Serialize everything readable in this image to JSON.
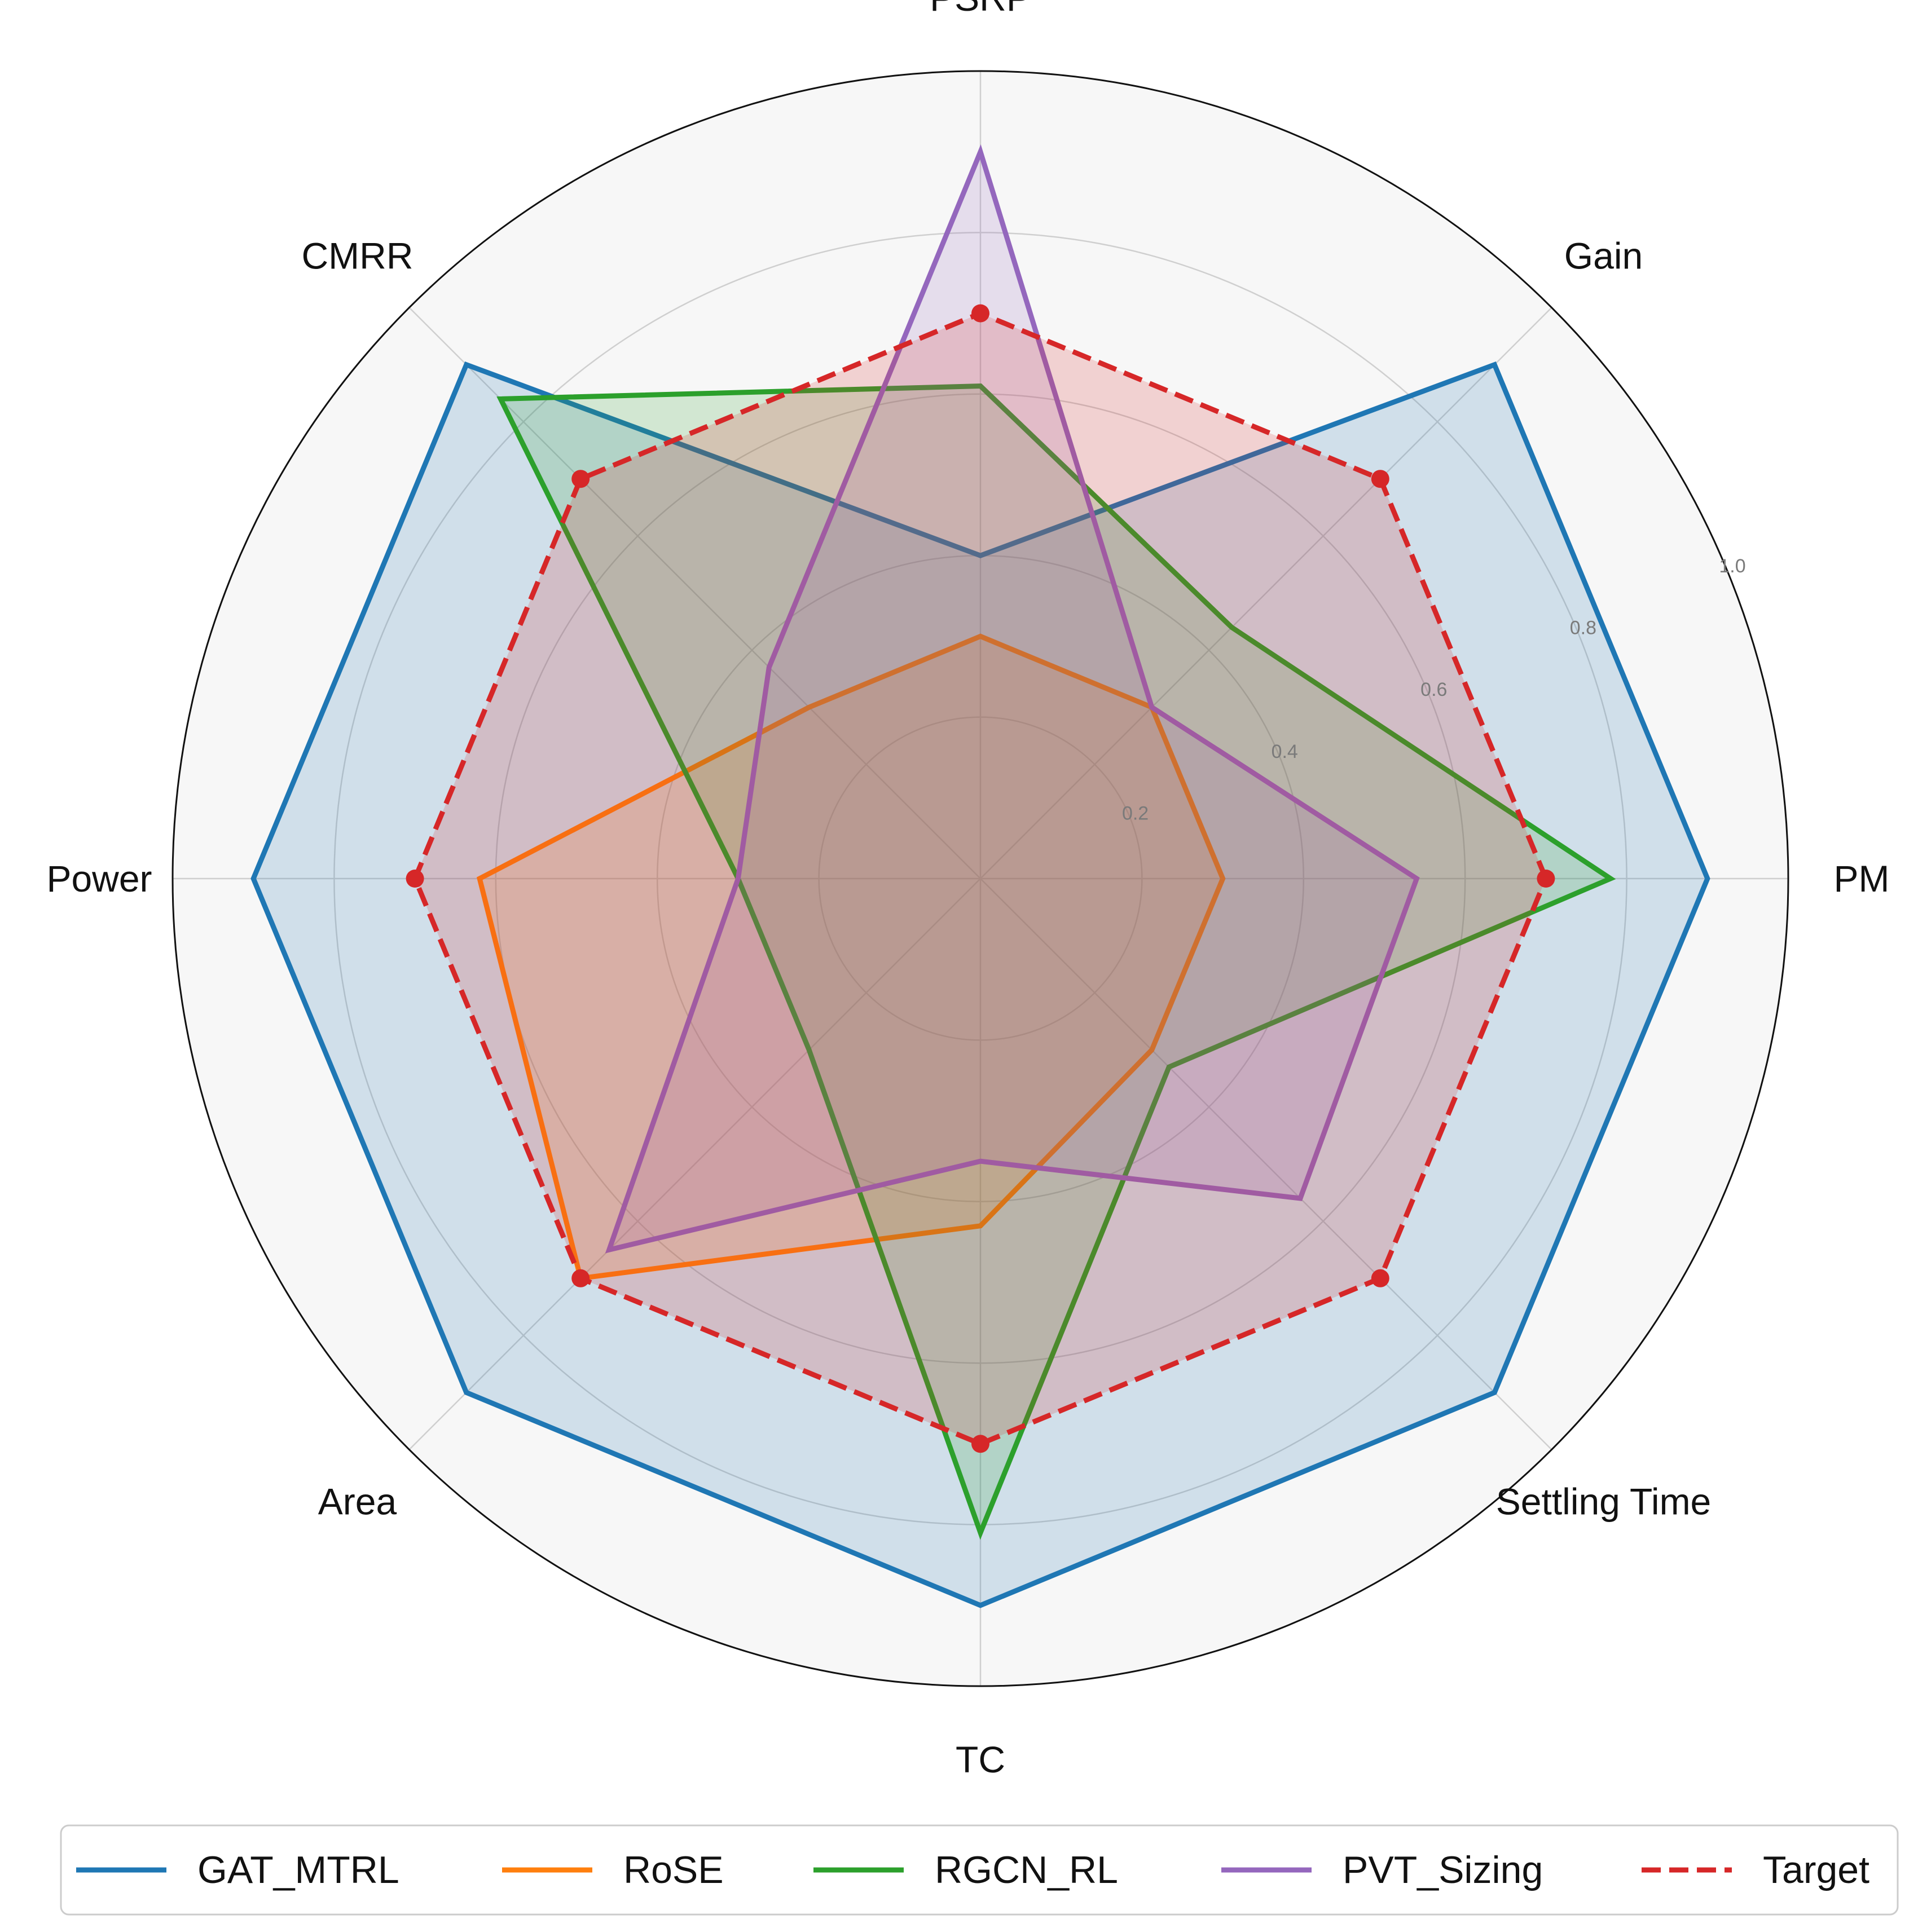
{
  "chart_data": {
    "type": "radar",
    "title": "",
    "axes": [
      "PM",
      "Gain",
      "PSRP",
      "CMRR",
      "Power",
      "Area",
      "TC",
      "Settling Time"
    ],
    "rlim": [
      0,
      1.0
    ],
    "rticks": [
      "0.2",
      "0.4",
      "0.6",
      "0.8",
      "1.0"
    ],
    "rtick_values": [
      0.2,
      0.4,
      0.6,
      0.8,
      1.0
    ],
    "grid": true,
    "legend_position": "bottom",
    "series": [
      {
        "name": "GAT_MTRL",
        "color": "#1f77b4",
        "style": "solid",
        "markers": false,
        "values": [
          0.9,
          0.9,
          0.4,
          0.9,
          0.9,
          0.9,
          0.9,
          0.9
        ]
      },
      {
        "name": "RoSE",
        "color": "#ff7f0e",
        "style": "solid",
        "markers": false,
        "values": [
          0.3,
          0.3,
          0.3,
          0.3,
          0.62,
          0.7,
          0.43,
          0.3
        ]
      },
      {
        "name": "RGCN_RL",
        "color": "#2ca02c",
        "style": "solid",
        "markers": false,
        "values": [
          0.78,
          0.44,
          0.61,
          0.84,
          0.3,
          0.3,
          0.81,
          0.33
        ]
      },
      {
        "name": "PVT_Sizing",
        "color": "#9467bd",
        "style": "solid",
        "markers": false,
        "values": [
          0.54,
          0.3,
          0.9,
          0.37,
          0.3,
          0.65,
          0.35,
          0.56
        ]
      },
      {
        "name": "Target",
        "color": "#d62728",
        "style": "dashed",
        "markers": true,
        "values": [
          0.7,
          0.7,
          0.7,
          0.7,
          0.7,
          0.7,
          0.7,
          0.7
        ]
      }
    ]
  }
}
